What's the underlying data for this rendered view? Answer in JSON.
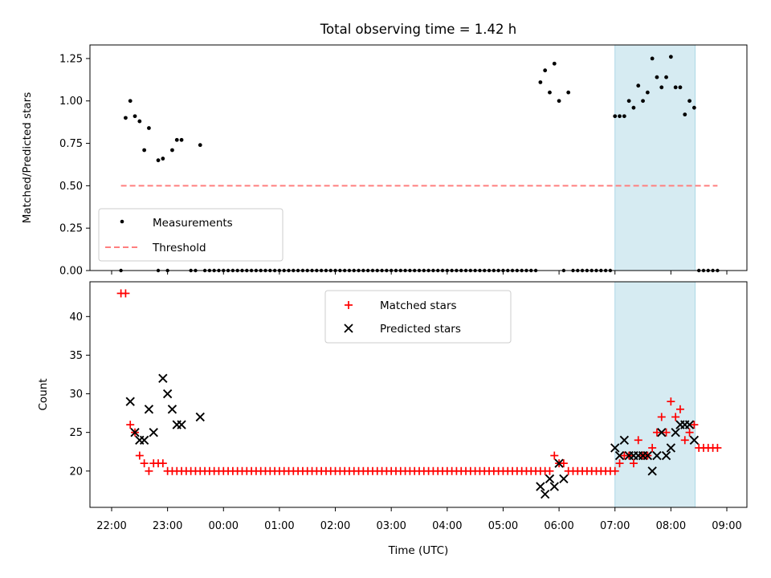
{
  "chart_data": {
    "type": "scatter",
    "title": "Total observing time = 1.42 h",
    "xlabel": "Time (UTC)",
    "x_tick_labels": [
      "22:00",
      "23:00",
      "00:00",
      "01:00",
      "02:00",
      "03:00",
      "04:00",
      "05:00",
      "06:00",
      "07:00",
      "08:00",
      "09:00"
    ],
    "highlight_span": {
      "start": "07:00",
      "end": "08:26"
    },
    "colors": {
      "matched": "#ff0000",
      "predicted": "#000000",
      "threshold": "#ff7f7f",
      "span": "#add8e6"
    },
    "top": {
      "ylabel": "Matched/Predicted stars",
      "ylim": [
        0,
        1.33
      ],
      "y_ticks": [
        "0.00",
        "0.25",
        "0.50",
        "0.75",
        "1.00",
        "1.25"
      ],
      "legend": {
        "measurements": "Measurements",
        "threshold": "Threshold"
      },
      "threshold": {
        "value": 0.5,
        "x_start": "22:10",
        "x_end": "08:50"
      },
      "measurements": [
        [
          "22:15",
          0.9
        ],
        [
          "22:20",
          1.0
        ],
        [
          "22:25",
          0.91
        ],
        [
          "22:30",
          0.88
        ],
        [
          "22:35",
          0.71
        ],
        [
          "22:40",
          0.84
        ],
        [
          "22:50",
          0.65
        ],
        [
          "22:55",
          0.66
        ],
        [
          "23:05",
          0.71
        ],
        [
          "23:10",
          0.77
        ],
        [
          "23:15",
          0.77
        ],
        [
          "23:35",
          0.74
        ],
        [
          "05:40",
          1.11
        ],
        [
          "05:45",
          1.18
        ],
        [
          "05:50",
          1.05
        ],
        [
          "05:55",
          1.22
        ],
        [
          "06:00",
          1.0
        ],
        [
          "06:10",
          1.05
        ],
        [
          "07:00",
          0.91
        ],
        [
          "07:05",
          0.91
        ],
        [
          "07:10",
          0.91
        ],
        [
          "07:15",
          1.0
        ],
        [
          "07:20",
          0.96
        ],
        [
          "07:25",
          1.09
        ],
        [
          "07:30",
          1.0
        ],
        [
          "07:35",
          1.05
        ],
        [
          "07:40",
          1.25
        ],
        [
          "07:45",
          1.14
        ],
        [
          "07:50",
          1.08
        ],
        [
          "07:55",
          1.14
        ],
        [
          "08:00",
          1.26
        ],
        [
          "08:05",
          1.08
        ],
        [
          "08:10",
          1.08
        ],
        [
          "08:15",
          0.92
        ],
        [
          "08:20",
          1.0
        ],
        [
          "08:25",
          0.96
        ]
      ],
      "zero_ranges": [
        [
          "22:10",
          "22:10"
        ],
        [
          "22:50",
          "22:50"
        ],
        [
          "23:00",
          "23:00"
        ],
        [
          "23:25",
          "23:30"
        ],
        [
          "23:40",
          "05:35"
        ],
        [
          "06:05",
          "06:05"
        ],
        [
          "06:15",
          "06:55"
        ],
        [
          "08:30",
          "08:50"
        ]
      ]
    },
    "bottom": {
      "ylabel": "Count",
      "ylim": [
        15.3,
        44.5
      ],
      "y_ticks": [
        20,
        25,
        30,
        35,
        40
      ],
      "legend": {
        "matched": "Matched stars",
        "predicted": "Predicted stars"
      },
      "matched_stars": [
        [
          "22:10",
          43
        ],
        [
          "22:15",
          43
        ],
        [
          "22:20",
          26
        ],
        [
          "22:25",
          25
        ],
        [
          "22:30",
          22
        ],
        [
          "22:35",
          21
        ],
        [
          "22:40",
          20
        ],
        [
          "22:45",
          21
        ],
        [
          "22:50",
          21
        ],
        [
          "22:55",
          21
        ],
        [
          "05:55",
          22
        ],
        [
          "06:00",
          21
        ],
        [
          "06:05",
          21
        ],
        [
          "07:00",
          20
        ],
        [
          "07:05",
          21
        ],
        [
          "07:10",
          22
        ],
        [
          "07:15",
          22
        ],
        [
          "07:20",
          21
        ],
        [
          "07:25",
          24
        ],
        [
          "07:30",
          22
        ],
        [
          "07:35",
          22
        ],
        [
          "07:40",
          23
        ],
        [
          "07:45",
          25
        ],
        [
          "07:50",
          27
        ],
        [
          "07:55",
          25
        ],
        [
          "08:00",
          29
        ],
        [
          "08:05",
          27
        ],
        [
          "08:10",
          28
        ],
        [
          "08:15",
          24
        ],
        [
          "08:20",
          25
        ],
        [
          "08:25",
          26
        ],
        [
          "08:30",
          23
        ],
        [
          "08:35",
          23
        ],
        [
          "08:40",
          23
        ],
        [
          "08:45",
          23
        ],
        [
          "08:50",
          23
        ]
      ],
      "matched_baseline": {
        "value": 20,
        "ranges": [
          [
            "23:00",
            "05:50"
          ],
          [
            "06:10",
            "06:55"
          ]
        ]
      },
      "predicted_stars": [
        [
          "22:20",
          29
        ],
        [
          "22:25",
          25
        ],
        [
          "22:30",
          24
        ],
        [
          "22:35",
          24
        ],
        [
          "22:40",
          28
        ],
        [
          "22:45",
          25
        ],
        [
          "22:55",
          32
        ],
        [
          "23:00",
          30
        ],
        [
          "23:05",
          28
        ],
        [
          "23:10",
          26
        ],
        [
          "23:15",
          26
        ],
        [
          "23:35",
          27
        ],
        [
          "05:40",
          18
        ],
        [
          "05:45",
          17
        ],
        [
          "05:50",
          19
        ],
        [
          "05:55",
          18
        ],
        [
          "06:00",
          21
        ],
        [
          "06:05",
          19
        ],
        [
          "07:00",
          23
        ],
        [
          "07:05",
          22
        ],
        [
          "07:10",
          24
        ],
        [
          "07:15",
          22
        ],
        [
          "07:20",
          22
        ],
        [
          "07:25",
          22
        ],
        [
          "07:30",
          22
        ],
        [
          "07:35",
          22
        ],
        [
          "07:40",
          20
        ],
        [
          "07:45",
          22
        ],
        [
          "07:50",
          25
        ],
        [
          "07:55",
          22
        ],
        [
          "08:00",
          23
        ],
        [
          "08:05",
          25
        ],
        [
          "08:10",
          26
        ],
        [
          "08:15",
          26
        ],
        [
          "08:20",
          26
        ],
        [
          "08:25",
          24
        ]
      ]
    }
  }
}
